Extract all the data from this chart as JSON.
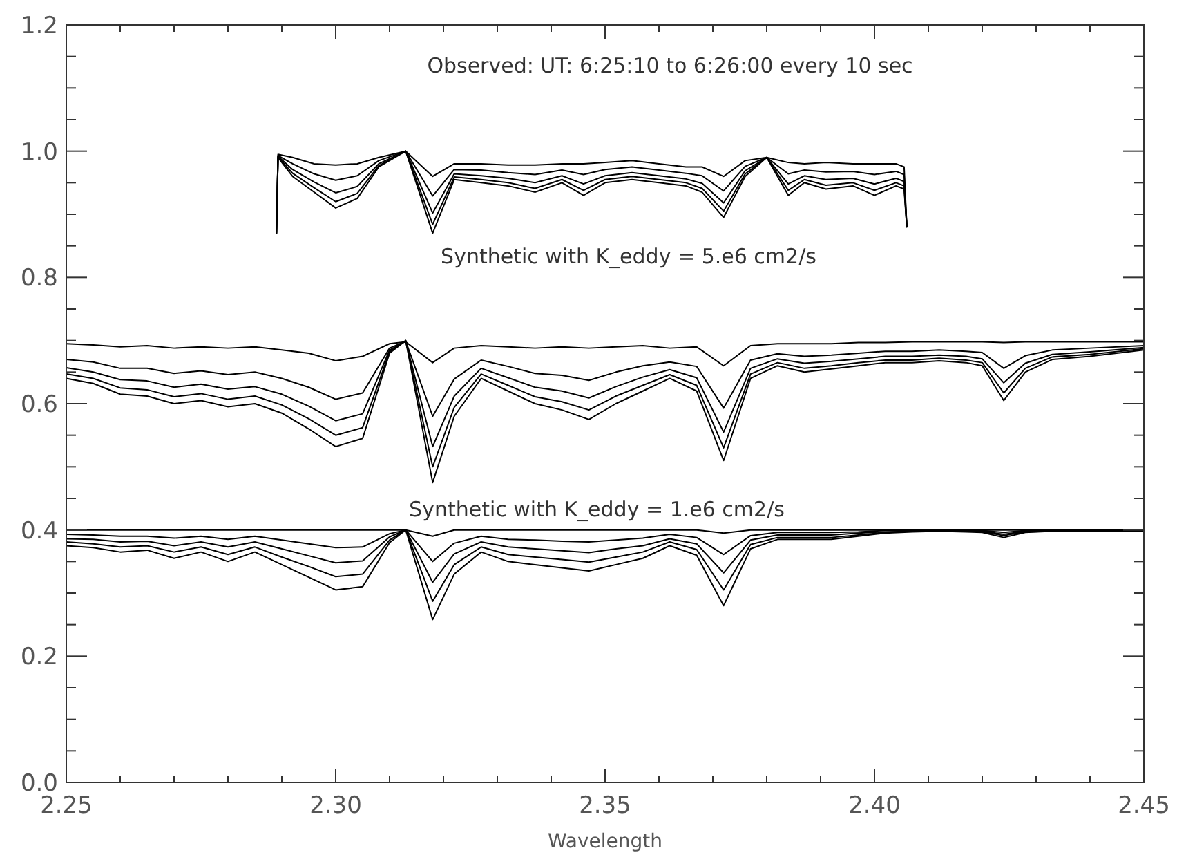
{
  "chart_data": {
    "type": "line",
    "xlabel": "Wavelength",
    "xlim": [
      2.25,
      2.45
    ],
    "ylim": [
      0,
      1.2
    ],
    "xticks": [
      {
        "value": 2.25,
        "label": "2.25"
      },
      {
        "value": 2.26,
        "label": null
      },
      {
        "value": 2.27,
        "label": null
      },
      {
        "value": 2.28,
        "label": null
      },
      {
        "value": 2.29,
        "label": null
      },
      {
        "value": 2.3,
        "label": "2.30"
      },
      {
        "value": 2.31,
        "label": null
      },
      {
        "value": 2.32,
        "label": null
      },
      {
        "value": 2.33,
        "label": null
      },
      {
        "value": 2.34,
        "label": null
      },
      {
        "value": 2.35,
        "label": "2.35"
      },
      {
        "value": 2.36,
        "label": null
      },
      {
        "value": 2.37,
        "label": null
      },
      {
        "value": 2.38,
        "label": null
      },
      {
        "value": 2.39,
        "label": null
      },
      {
        "value": 2.4,
        "label": "2.40"
      },
      {
        "value": 2.41,
        "label": null
      },
      {
        "value": 2.42,
        "label": null
      },
      {
        "value": 2.43,
        "label": null
      },
      {
        "value": 2.44,
        "label": null
      },
      {
        "value": 2.45,
        "label": "2.45"
      }
    ],
    "yticks": [
      {
        "value": 0,
        "label": "0.0"
      },
      {
        "value": 0.05,
        "label": null
      },
      {
        "value": 0.1,
        "label": null
      },
      {
        "value": 0.15,
        "label": null
      },
      {
        "value": 0.2,
        "label": "0.2"
      },
      {
        "value": 0.25,
        "label": null
      },
      {
        "value": 0.3,
        "label": null
      },
      {
        "value": 0.35,
        "label": null
      },
      {
        "value": 0.4,
        "label": "0.4"
      },
      {
        "value": 0.45,
        "label": null
      },
      {
        "value": 0.5,
        "label": null
      },
      {
        "value": 0.55,
        "label": null
      },
      {
        "value": 0.6,
        "label": "0.6"
      },
      {
        "value": 0.65,
        "label": null
      },
      {
        "value": 0.7,
        "label": null
      },
      {
        "value": 0.75,
        "label": null
      },
      {
        "value": 0.8,
        "label": "0.8"
      },
      {
        "value": 0.85,
        "label": null
      },
      {
        "value": 0.9,
        "label": null
      },
      {
        "value": 0.95,
        "label": null
      },
      {
        "value": 1.0,
        "label": "1.0"
      },
      {
        "value": 1.05,
        "label": null
      },
      {
        "value": 1.1,
        "label": null
      },
      {
        "value": 1.15,
        "label": null
      },
      {
        "value": 1.2,
        "label": "1.2"
      }
    ],
    "grid": false,
    "annotations": [
      "Observed: UT: 6:25:10 to 6:26:00 every 10 sec",
      "Synthetic with K_eddy = 5.e6 cm2/s",
      "Synthetic with K_eddy = 1.e6 cm2/s"
    ],
    "x": [
      2.25,
      2.255,
      2.26,
      2.265,
      2.27,
      2.275,
      2.28,
      2.285,
      2.29,
      2.295,
      2.3,
      2.305,
      2.31,
      2.313,
      2.318,
      2.322,
      2.327,
      2.332,
      2.337,
      2.342,
      2.347,
      2.352,
      2.357,
      2.362,
      2.367,
      2.372,
      2.377,
      2.382,
      2.387,
      2.392,
      2.397,
      2.402,
      2.407,
      2.412,
      2.417,
      2.42,
      2.424,
      2.428,
      2.433,
      2.44,
      2.45
    ],
    "series": [
      {
        "color": "#000000",
        "x": [
          2.289,
          2.2893,
          2.292,
          2.296,
          2.3,
          2.304,
          2.308,
          2.313,
          2.318,
          2.322,
          2.327,
          2.332,
          2.337,
          2.342,
          2.346,
          2.35,
          2.355,
          2.36,
          2.365,
          2.368,
          2.372,
          2.376,
          2.38,
          2.384,
          2.387,
          2.391,
          2.396,
          2.4,
          2.404,
          2.4055,
          2.406
        ],
        "values": [
          0.87,
          0.995,
          0.99,
          0.98,
          0.978,
          0.98,
          0.99,
          1.0,
          0.96,
          0.98,
          0.98,
          0.978,
          0.978,
          0.98,
          0.98,
          0.982,
          0.985,
          0.98,
          0.975,
          0.975,
          0.96,
          0.985,
          0.99,
          0.982,
          0.98,
          0.982,
          0.98,
          0.98,
          0.98,
          0.975,
          0.88
        ]
      },
      {
        "color": "#000000",
        "x": [
          2.289,
          2.2893,
          2.292,
          2.296,
          2.3,
          2.304,
          2.308,
          2.313,
          2.318,
          2.322,
          2.327,
          2.332,
          2.337,
          2.342,
          2.346,
          2.35,
          2.355,
          2.36,
          2.365,
          2.368,
          2.372,
          2.376,
          2.38,
          2.384,
          2.387,
          2.391,
          2.396,
          2.4,
          2.404,
          2.4055,
          2.406
        ],
        "values": [
          0.87,
          0.993,
          0.98,
          0.964,
          0.954,
          0.961,
          0.985,
          1.0,
          0.929,
          0.971,
          0.97,
          0.966,
          0.963,
          0.97,
          0.963,
          0.971,
          0.975,
          0.97,
          0.965,
          0.961,
          0.937,
          0.976,
          0.99,
          0.964,
          0.97,
          0.967,
          0.968,
          0.963,
          0.968,
          0.963,
          0.88
        ]
      },
      {
        "color": "#000000",
        "x": [
          2.289,
          2.2893,
          2.292,
          2.296,
          2.3,
          2.304,
          2.308,
          2.313,
          2.318,
          2.322,
          2.327,
          2.332,
          2.337,
          2.342,
          2.346,
          2.35,
          2.355,
          2.36,
          2.365,
          2.368,
          2.372,
          2.376,
          2.38,
          2.384,
          2.387,
          2.391,
          2.396,
          2.4,
          2.404,
          2.4055,
          2.406
        ],
        "values": [
          0.87,
          0.992,
          0.971,
          0.951,
          0.934,
          0.944,
          0.98,
          1.0,
          0.902,
          0.964,
          0.961,
          0.957,
          0.95,
          0.961,
          0.948,
          0.961,
          0.966,
          0.961,
          0.956,
          0.949,
          0.918,
          0.969,
          0.99,
          0.948,
          0.961,
          0.955,
          0.957,
          0.948,
          0.957,
          0.952,
          0.88
        ]
      },
      {
        "color": "#000000",
        "x": [
          2.289,
          2.2893,
          2.292,
          2.296,
          2.3,
          2.304,
          2.308,
          2.313,
          2.318,
          2.322,
          2.327,
          2.332,
          2.337,
          2.342,
          2.346,
          2.35,
          2.355,
          2.36,
          2.365,
          2.368,
          2.372,
          2.376,
          2.38,
          2.384,
          2.387,
          2.391,
          2.396,
          2.4,
          2.404,
          2.4055,
          2.406
        ],
        "values": [
          0.87,
          0.991,
          0.965,
          0.942,
          0.92,
          0.933,
          0.977,
          1.0,
          0.884,
          0.959,
          0.955,
          0.95,
          0.941,
          0.955,
          0.938,
          0.955,
          0.96,
          0.955,
          0.95,
          0.941,
          0.905,
          0.964,
          0.99,
          0.938,
          0.955,
          0.946,
          0.95,
          0.938,
          0.95,
          0.945,
          0.88
        ]
      },
      {
        "color": "#000000",
        "x": [
          2.289,
          2.2893,
          2.292,
          2.296,
          2.3,
          2.304,
          2.308,
          2.313,
          2.318,
          2.322,
          2.327,
          2.332,
          2.337,
          2.342,
          2.346,
          2.35,
          2.355,
          2.36,
          2.365,
          2.368,
          2.372,
          2.376,
          2.38,
          2.384,
          2.387,
          2.391,
          2.396,
          2.4,
          2.404,
          2.4055,
          2.406
        ],
        "values": [
          0.87,
          0.99,
          0.96,
          0.935,
          0.91,
          0.925,
          0.975,
          1.0,
          0.87,
          0.955,
          0.95,
          0.945,
          0.935,
          0.95,
          0.93,
          0.95,
          0.955,
          0.95,
          0.945,
          0.935,
          0.895,
          0.96,
          0.99,
          0.93,
          0.95,
          0.94,
          0.945,
          0.93,
          0.945,
          0.94,
          0.88
        ]
      },
      {
        "color": "#000000",
        "values": [
          0.695,
          0.693,
          0.69,
          0.692,
          0.688,
          0.69,
          0.688,
          0.69,
          0.685,
          0.68,
          0.668,
          0.675,
          0.695,
          0.698,
          0.665,
          0.688,
          0.692,
          0.69,
          0.688,
          0.69,
          0.688,
          0.69,
          0.692,
          0.688,
          0.69,
          0.66,
          0.692,
          0.695,
          0.695,
          0.695,
          0.697,
          0.697,
          0.698,
          0.698,
          0.698,
          0.698,
          0.697,
          0.698,
          0.698,
          0.698,
          0.698
        ]
      },
      {
        "color": "#000000",
        "values": [
          0.67,
          0.666,
          0.656,
          0.656,
          0.648,
          0.652,
          0.646,
          0.65,
          0.64,
          0.626,
          0.607,
          0.617,
          0.688,
          0.699,
          0.58,
          0.639,
          0.669,
          0.659,
          0.648,
          0.645,
          0.637,
          0.65,
          0.66,
          0.666,
          0.659,
          0.593,
          0.669,
          0.679,
          0.675,
          0.677,
          0.68,
          0.683,
          0.683,
          0.685,
          0.683,
          0.681,
          0.656,
          0.676,
          0.685,
          0.688,
          0.692
        ]
      },
      {
        "color": "#000000",
        "values": [
          0.657,
          0.65,
          0.638,
          0.636,
          0.626,
          0.631,
          0.623,
          0.627,
          0.615,
          0.596,
          0.573,
          0.584,
          0.685,
          0.699,
          0.532,
          0.612,
          0.656,
          0.641,
          0.626,
          0.62,
          0.609,
          0.627,
          0.642,
          0.654,
          0.641,
          0.555,
          0.656,
          0.671,
          0.664,
          0.667,
          0.671,
          0.675,
          0.675,
          0.677,
          0.675,
          0.671,
          0.633,
          0.664,
          0.678,
          0.682,
          0.689
        ]
      },
      {
        "color": "#000000",
        "values": [
          0.647,
          0.64,
          0.625,
          0.622,
          0.611,
          0.616,
          0.607,
          0.612,
          0.598,
          0.576,
          0.55,
          0.562,
          0.682,
          0.7,
          0.5,
          0.594,
          0.647,
          0.629,
          0.611,
          0.603,
          0.59,
          0.612,
          0.629,
          0.646,
          0.629,
          0.53,
          0.647,
          0.665,
          0.656,
          0.66,
          0.665,
          0.669,
          0.669,
          0.672,
          0.669,
          0.665,
          0.617,
          0.656,
          0.674,
          0.678,
          0.687
        ]
      },
      {
        "color": "#000000",
        "values": [
          0.64,
          0.632,
          0.615,
          0.612,
          0.6,
          0.605,
          0.595,
          0.6,
          0.585,
          0.56,
          0.532,
          0.545,
          0.68,
          0.7,
          0.475,
          0.58,
          0.64,
          0.62,
          0.6,
          0.59,
          0.575,
          0.6,
          0.62,
          0.64,
          0.62,
          0.51,
          0.64,
          0.66,
          0.65,
          0.655,
          0.66,
          0.665,
          0.665,
          0.668,
          0.665,
          0.66,
          0.605,
          0.65,
          0.67,
          0.675,
          0.685
        ]
      },
      {
        "color": "#000000",
        "values": [
          0.4,
          0.4,
          0.4,
          0.4,
          0.4,
          0.4,
          0.4,
          0.4,
          0.4,
          0.4,
          0.4,
          0.4,
          0.4,
          0.4,
          0.39,
          0.4,
          0.4,
          0.4,
          0.4,
          0.4,
          0.4,
          0.4,
          0.4,
          0.4,
          0.4,
          0.395,
          0.4,
          0.4,
          0.4,
          0.4,
          0.4,
          0.4,
          0.4,
          0.4,
          0.4,
          0.4,
          0.4,
          0.4,
          0.4,
          0.4,
          0.4
        ]
      },
      {
        "color": "#000000",
        "values": [
          0.393,
          0.392,
          0.39,
          0.39,
          0.387,
          0.39,
          0.385,
          0.39,
          0.384,
          0.378,
          0.372,
          0.373,
          0.394,
          0.4,
          0.35,
          0.379,
          0.39,
          0.385,
          0.384,
          0.382,
          0.381,
          0.384,
          0.387,
          0.393,
          0.388,
          0.361,
          0.391,
          0.396,
          0.396,
          0.396,
          0.397,
          0.399,
          0.399,
          0.399,
          0.399,
          0.399,
          0.396,
          0.399,
          0.399,
          0.399,
          0.399
        ]
      },
      {
        "color": "#000000",
        "values": [
          0.386,
          0.385,
          0.381,
          0.382,
          0.375,
          0.381,
          0.373,
          0.381,
          0.37,
          0.359,
          0.348,
          0.351,
          0.389,
          0.4,
          0.317,
          0.362,
          0.381,
          0.373,
          0.37,
          0.367,
          0.364,
          0.37,
          0.375,
          0.386,
          0.378,
          0.332,
          0.384,
          0.392,
          0.392,
          0.392,
          0.395,
          0.397,
          0.398,
          0.399,
          0.398,
          0.398,
          0.393,
          0.398,
          0.399,
          0.399,
          0.399
        ]
      },
      {
        "color": "#000000",
        "values": [
          0.381,
          0.378,
          0.373,
          0.375,
          0.365,
          0.373,
          0.361,
          0.373,
          0.357,
          0.342,
          0.326,
          0.33,
          0.384,
          0.4,
          0.287,
          0.345,
          0.373,
          0.361,
          0.357,
          0.353,
          0.349,
          0.357,
          0.365,
          0.381,
          0.369,
          0.305,
          0.377,
          0.388,
          0.388,
          0.388,
          0.392,
          0.396,
          0.398,
          0.398,
          0.398,
          0.397,
          0.391,
          0.397,
          0.398,
          0.398,
          0.398
        ]
      },
      {
        "color": "#000000",
        "values": [
          0.375,
          0.372,
          0.365,
          0.368,
          0.355,
          0.365,
          0.35,
          0.365,
          0.345,
          0.325,
          0.305,
          0.31,
          0.38,
          0.4,
          0.258,
          0.33,
          0.365,
          0.35,
          0.345,
          0.34,
          0.335,
          0.345,
          0.355,
          0.375,
          0.36,
          0.28,
          0.37,
          0.385,
          0.385,
          0.385,
          0.39,
          0.395,
          0.397,
          0.398,
          0.397,
          0.396,
          0.388,
          0.396,
          0.398,
          0.398,
          0.398
        ]
      }
    ]
  }
}
